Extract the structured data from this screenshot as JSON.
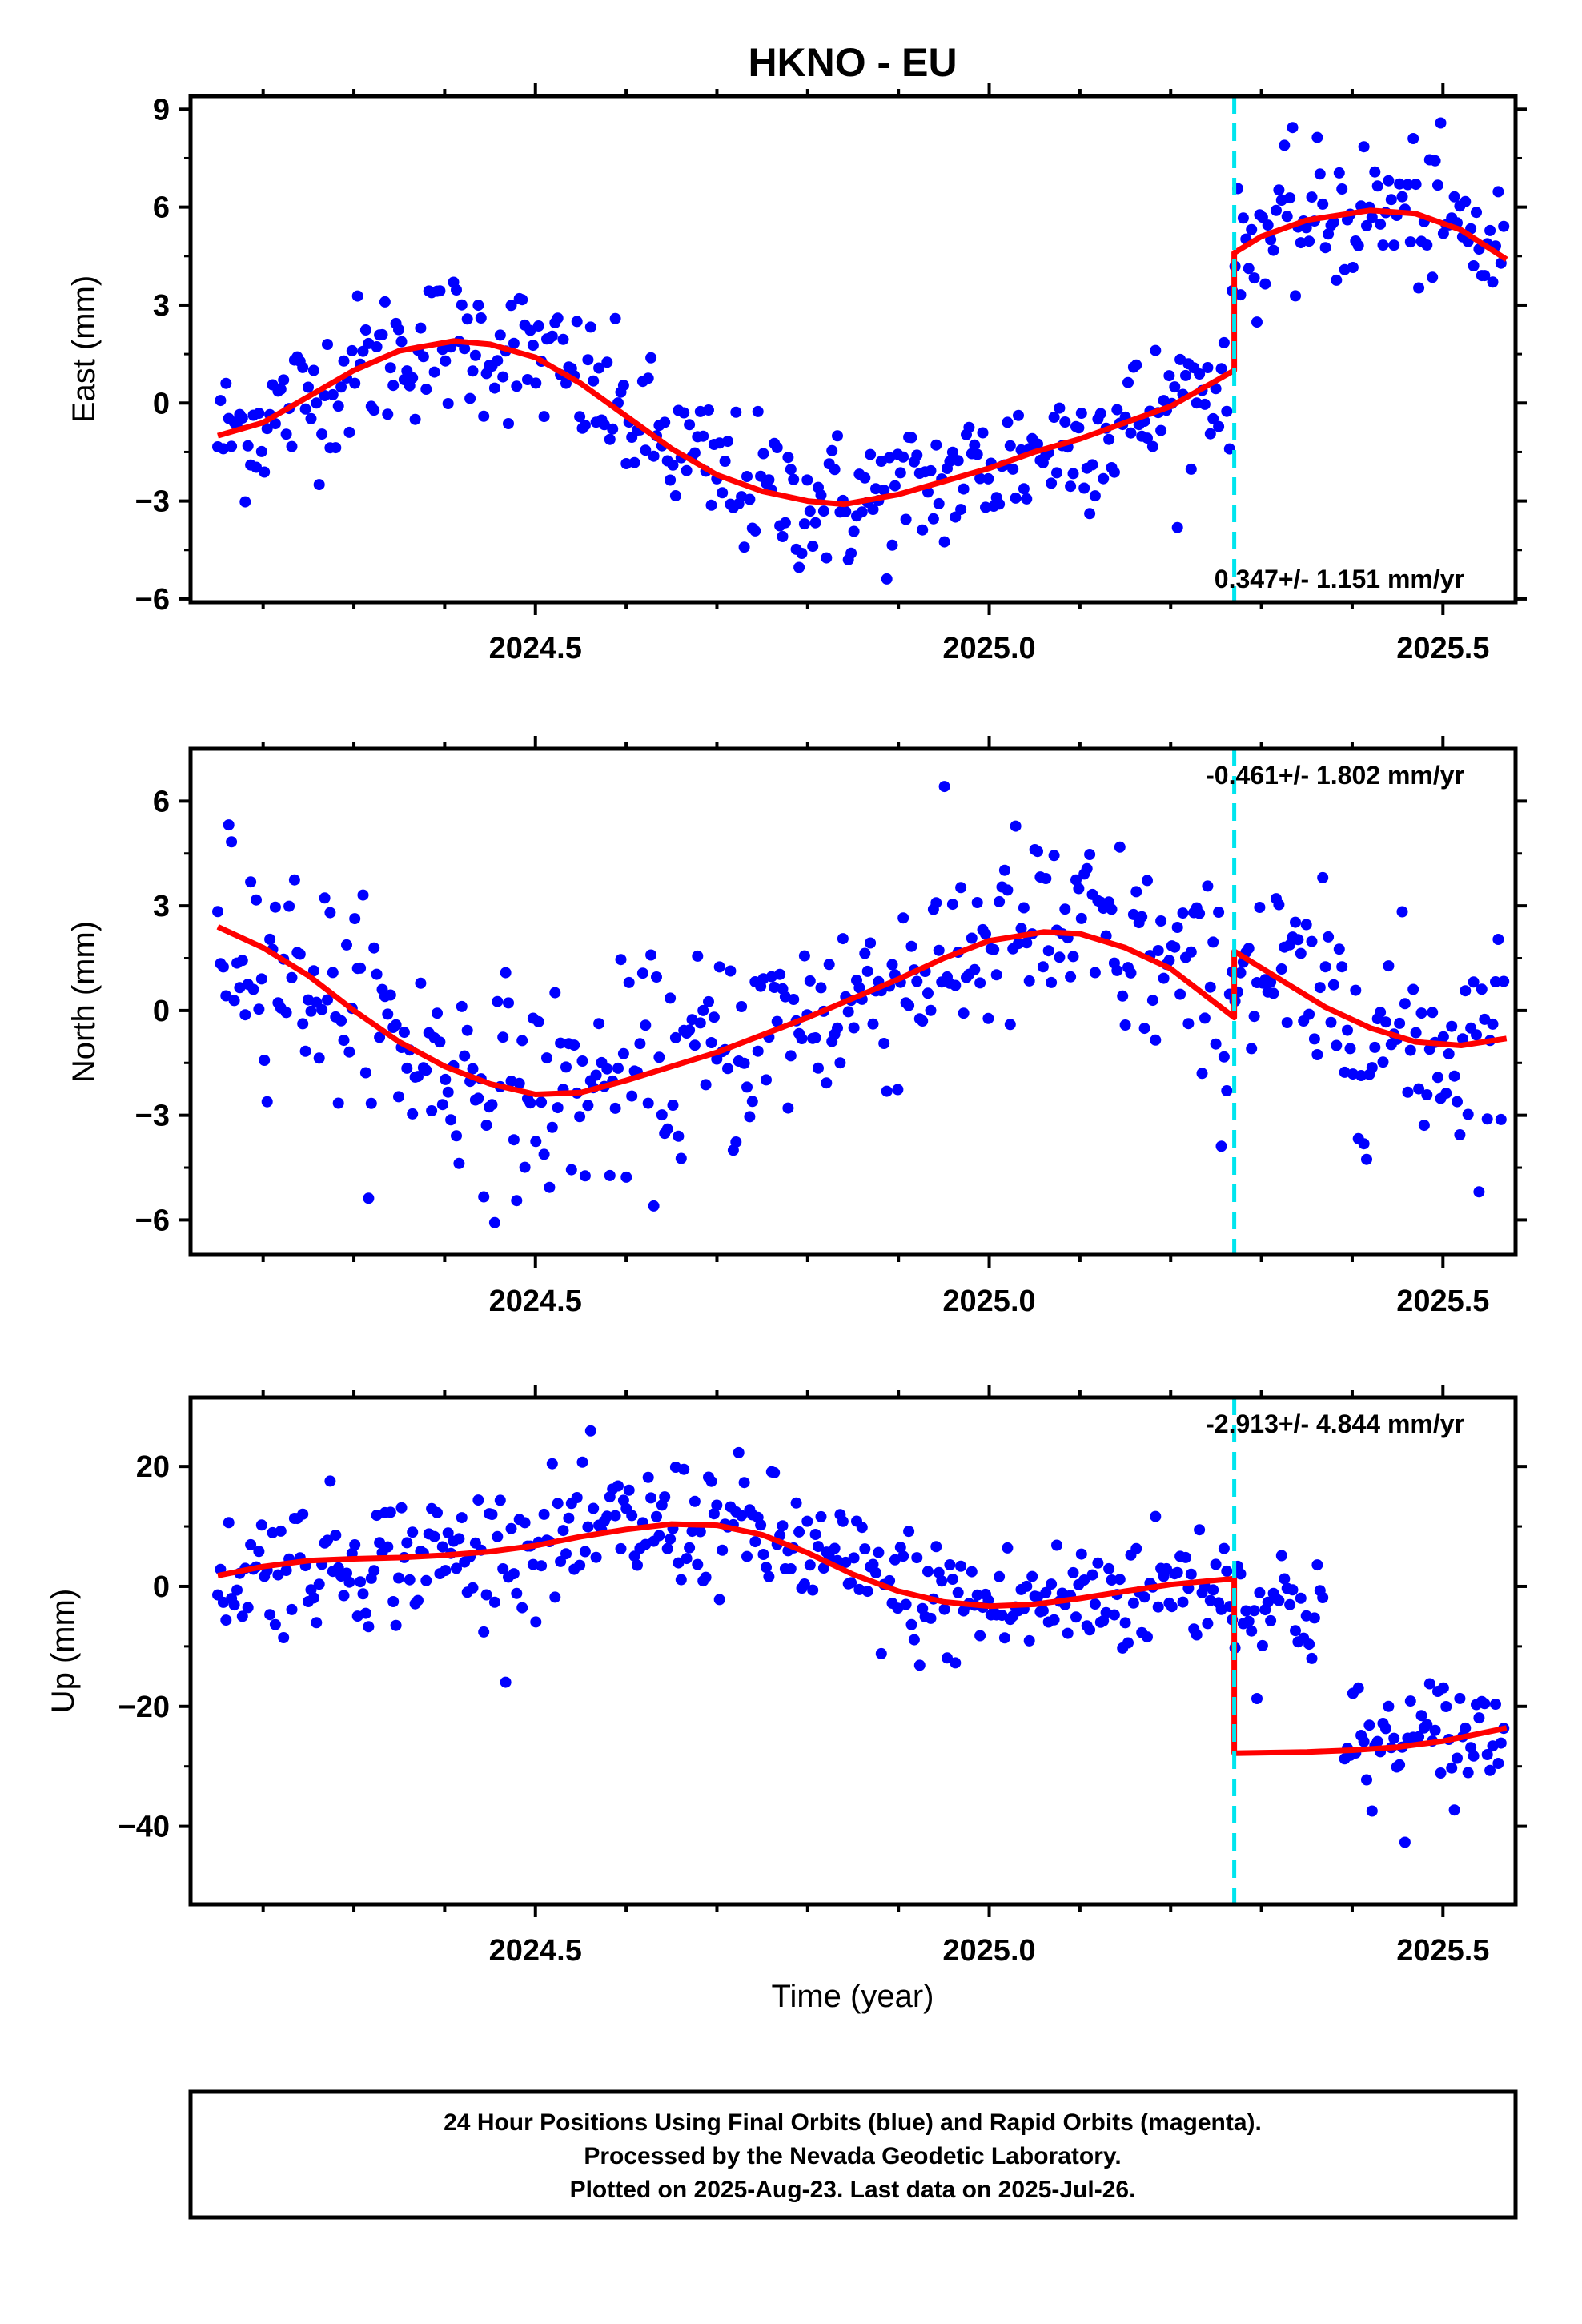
{
  "title": "HKNO - EU",
  "colors": {
    "data": "#0000ff",
    "model": "#ff0000",
    "offset": "#00e5ee",
    "frame": "#000000"
  },
  "chart_data": [
    {
      "type": "scatter",
      "ylabel": "East (mm)",
      "xlim": [
        2024.12,
        2025.58
      ],
      "ylim": [
        -6.1,
        9.4
      ],
      "yticks": [
        9,
        6,
        3,
        0,
        -3,
        -6
      ],
      "ytick_labels": [
        "9",
        "6",
        "3",
        "0",
        "−3",
        "−6"
      ],
      "xticks": [
        2024.5,
        2025.0,
        2025.5
      ],
      "xtick_labels": [
        "2024.5",
        "2025.0",
        "2025.5"
      ],
      "offset_x": 2025.27,
      "rate_label": "0.347+/- 1.151 mm/yr",
      "rate_position": "bottom-right",
      "model": {
        "x": [
          2024.15,
          2024.2,
          2024.25,
          2024.3,
          2024.35,
          2024.41,
          2024.45,
          2024.5,
          2024.55,
          2024.6,
          2024.65,
          2024.7,
          2024.75,
          2024.8,
          2024.84,
          2024.9,
          2024.95,
          2025.0,
          2025.05,
          2025.1,
          2025.15,
          2025.2,
          2025.27,
          2025.27,
          2025.3,
          2025.35,
          2025.42,
          2025.47,
          2025.52,
          2025.57
        ],
        "y": [
          -1.0,
          -0.6,
          0.2,
          1.0,
          1.6,
          1.9,
          1.8,
          1.4,
          0.6,
          -0.4,
          -1.4,
          -2.2,
          -2.7,
          -3.0,
          -3.1,
          -2.8,
          -2.4,
          -2.0,
          -1.5,
          -1.1,
          -0.6,
          -0.1,
          1.0,
          4.6,
          5.1,
          5.6,
          5.9,
          5.8,
          5.3,
          4.4
        ]
      },
      "series_model": "",
      "trend": {
        "x0": 2024.15,
        "x1": 2025.57,
        "y_start": [
          -0.8,
          1.8,
          1.9,
          0.6,
          -1.9,
          -3.0,
          -2.6,
          -1.4,
          -0.2,
          5.0,
          5.6,
          4.8
        ],
        "segments": 12
      },
      "scatter_sd": 1.1
    },
    {
      "type": "scatter",
      "ylabel": "North (mm)",
      "xlim": [
        2024.12,
        2025.58
      ],
      "ylim": [
        -7.0,
        7.5
      ],
      "yticks": [
        6,
        3,
        0,
        -3,
        -6
      ],
      "ytick_labels": [
        "6",
        "3",
        "0",
        "−3",
        "−6"
      ],
      "xticks": [
        2024.5,
        2025.0,
        2025.5
      ],
      "xtick_labels": [
        "2024.5",
        "2025.0",
        "2025.5"
      ],
      "offset_x": 2025.27,
      "rate_label": "-0.461+/- 1.802 mm/yr",
      "rate_position": "top-right",
      "model": {
        "x": [
          2024.15,
          2024.2,
          2024.25,
          2024.3,
          2024.35,
          2024.4,
          2024.45,
          2024.5,
          2024.55,
          2024.6,
          2024.7,
          2024.8,
          2024.9,
          2024.95,
          2025.0,
          2025.06,
          2025.1,
          2025.15,
          2025.2,
          2025.27,
          2025.27,
          2025.32,
          2025.37,
          2025.42,
          2025.47,
          2025.52,
          2025.57
        ],
        "y": [
          2.4,
          1.8,
          1.0,
          0.0,
          -0.9,
          -1.6,
          -2.1,
          -2.4,
          -2.35,
          -2.0,
          -1.2,
          -0.2,
          0.9,
          1.5,
          2.0,
          2.25,
          2.2,
          1.8,
          1.2,
          -0.2,
          1.7,
          0.9,
          0.1,
          -0.5,
          -0.9,
          -1.0,
          -0.8
        ]
      },
      "scatter_sd": 1.5
    },
    {
      "type": "scatter",
      "ylabel": "Up (mm)",
      "xlabel": "Time (year)",
      "xlim": [
        2024.12,
        2025.58
      ],
      "ylim": [
        -53,
        31.5
      ],
      "yticks": [
        20,
        0,
        -20,
        -40
      ],
      "ytick_labels": [
        "20",
        "0",
        "−20",
        "−40"
      ],
      "xticks": [
        2024.5,
        2025.0,
        2025.5
      ],
      "xtick_labels": [
        "2024.5",
        "2025.0",
        "2025.5"
      ],
      "offset_x": 2025.27,
      "rate_label": "-2.913+/- 4.844 mm/yr",
      "rate_position": "top-right",
      "model": {
        "x": [
          2024.15,
          2024.2,
          2024.25,
          2024.3,
          2024.35,
          2024.4,
          2024.45,
          2024.5,
          2024.55,
          2024.6,
          2024.65,
          2024.7,
          2024.75,
          2024.8,
          2024.85,
          2024.9,
          2024.95,
          2025.0,
          2025.05,
          2025.1,
          2025.15,
          2025.2,
          2025.27,
          2025.27,
          2025.35,
          2025.4,
          2025.45,
          2025.5,
          2025.57
        ],
        "y": [
          1.8,
          3.3,
          4.3,
          4.6,
          4.8,
          5.2,
          5.8,
          6.8,
          8.3,
          9.5,
          10.4,
          10.2,
          8.6,
          5.6,
          2.0,
          -0.8,
          -2.6,
          -3.3,
          -3.0,
          -2.0,
          -0.8,
          0.3,
          1.3,
          -27.8,
          -27.6,
          -27.3,
          -26.8,
          -25.8,
          -23.6
        ]
      },
      "scatter_sd": 5.5
    }
  ],
  "footer": {
    "line1": "24 Hour Positions Using Final Orbits (blue) and Rapid Orbits (magenta).",
    "line2": "Processed by the Nevada Geodetic Laboratory.",
    "line3": "Plotted on 2025-Aug-23. Last data on 2025-Jul-26."
  }
}
